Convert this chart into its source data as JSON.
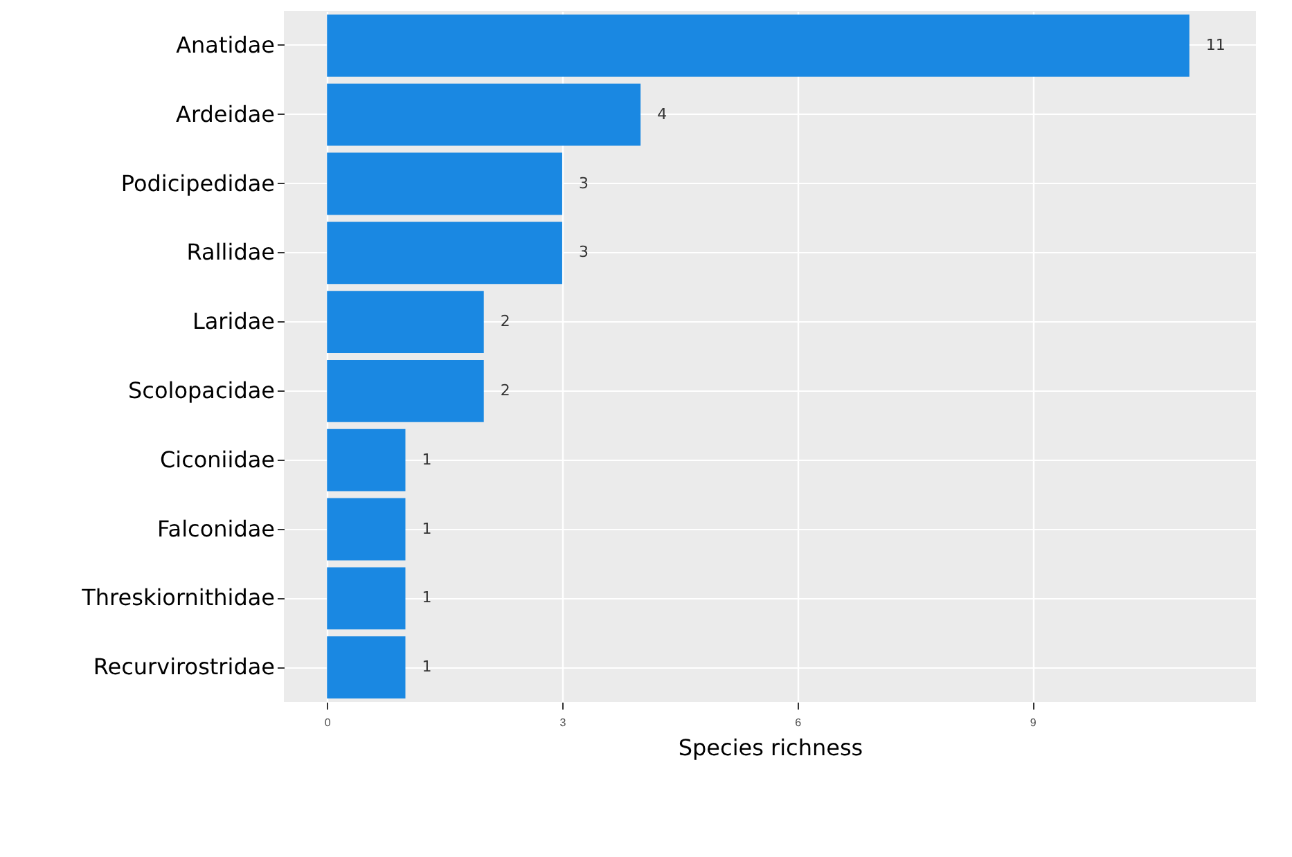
{
  "chart_data": {
    "type": "bar",
    "orientation": "horizontal",
    "xlabel": "Species richness",
    "categories": [
      "Anatidae",
      "Ardeidae",
      "Podicipedidae",
      "Rallidae",
      "Laridae",
      "Scolopacidae",
      "Ciconiidae",
      "Falconidae",
      "Threskiornithidae",
      "Recurvirostridae"
    ],
    "values": [
      11,
      4,
      3,
      3,
      2,
      2,
      1,
      1,
      1,
      1
    ],
    "color": "#1a88e2",
    "xlim": [
      -0.55,
      11.85
    ],
    "xticks": [
      0,
      3,
      6,
      9
    ],
    "grid": true,
    "data_labels": true
  }
}
